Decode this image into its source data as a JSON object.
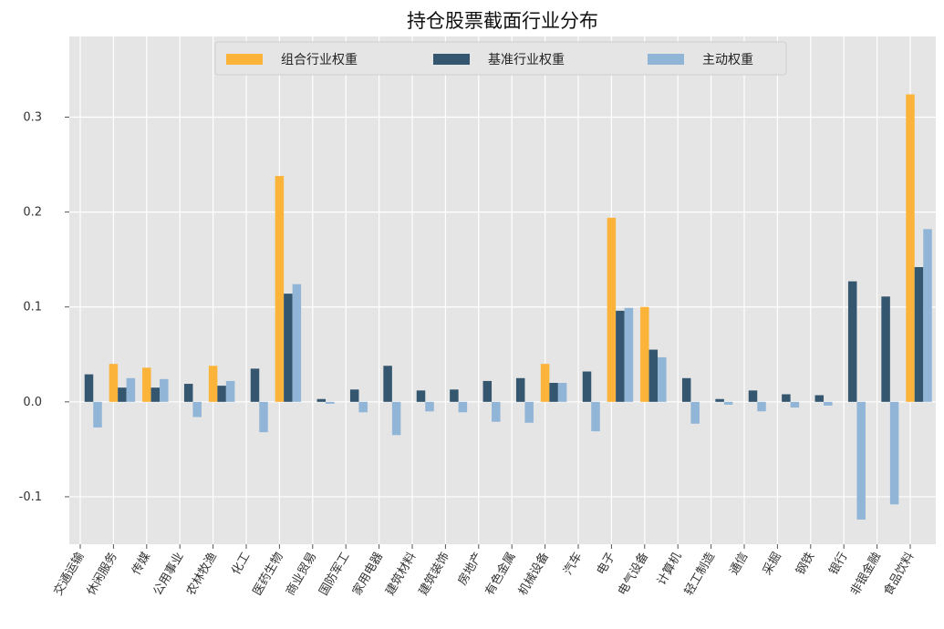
{
  "chart_data": {
    "type": "bar",
    "title": "持仓股票截面行业分布",
    "xlabel": "",
    "ylabel": "",
    "ylim": [
      -0.15,
      0.385
    ],
    "yticks": [
      -0.1,
      0.0,
      0.1,
      0.2,
      0.3
    ],
    "ytick_labels": [
      "-0.1",
      "0.0",
      "0.1",
      "0.2",
      "0.3"
    ],
    "grid": true,
    "legend_position": "top-center",
    "categories": [
      "交通运输",
      "休闲服务",
      "传媒",
      "公用事业",
      "农林牧渔",
      "化工",
      "医药生物",
      "商业贸易",
      "国防军工",
      "家用电器",
      "建筑材料",
      "建筑装饰",
      "房地产",
      "有色金属",
      "机械设备",
      "汽车",
      "电子",
      "电气设备",
      "计算机",
      "轻工制造",
      "通信",
      "采掘",
      "钢铁",
      "银行",
      "非银金融",
      "食品饮料"
    ],
    "series": [
      {
        "name": "组合行业权重",
        "color": "#FBB33A",
        "values": [
          0,
          0.04,
          0.036,
          0,
          0.038,
          0,
          0.238,
          0,
          0,
          0,
          0,
          0,
          0,
          0,
          0.04,
          0,
          0.194,
          0.1,
          0,
          0,
          0,
          0,
          0,
          0,
          0,
          0.324
        ]
      },
      {
        "name": "基准行业权重",
        "color": "#34566F",
        "values": [
          0.029,
          0.015,
          0.015,
          0.019,
          0.017,
          0.035,
          0.114,
          0.003,
          0.013,
          0.038,
          0.012,
          0.013,
          0.022,
          0.025,
          0.02,
          0.032,
          0.096,
          0.055,
          0.025,
          0.003,
          0.012,
          0.008,
          0.007,
          0.127,
          0.111,
          0.142
        ]
      },
      {
        "name": "主动权重",
        "color": "#91B5D7",
        "values": [
          -0.027,
          0.025,
          0.024,
          -0.016,
          0.022,
          -0.032,
          0.124,
          -0.002,
          -0.011,
          -0.035,
          -0.01,
          -0.011,
          -0.021,
          -0.022,
          0.02,
          -0.031,
          0.099,
          0.047,
          -0.023,
          -0.003,
          -0.01,
          -0.006,
          -0.004,
          -0.124,
          -0.108,
          0.182
        ]
      }
    ]
  }
}
